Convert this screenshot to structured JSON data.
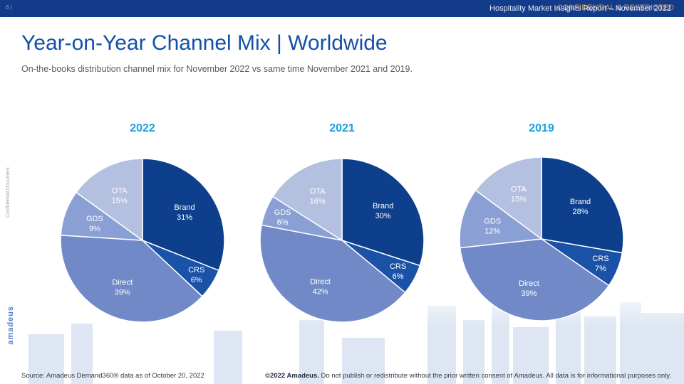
{
  "header": {
    "page_number": "6 |",
    "report_title": "Hospitality Market Insights Report – November 2022",
    "confidential": "CONFIDENTIAL & RESTRICTED"
  },
  "side": {
    "confidential_label": "Confidential Document",
    "logo_text": "amadeus"
  },
  "slide": {
    "title": "Year-on-Year Channel Mix | Worldwide",
    "subtitle": "On-the-books distribution channel mix for November 2022 vs same time November 2021 and 2019."
  },
  "colors": {
    "Brand": "#0d3f8c",
    "CRS": "#1a52a8",
    "Direct": "#7189c7",
    "GDS": "#8a9fd4",
    "OTA": "#b4c0e0",
    "year_title": "#1aa0dd",
    "header_bar": "#123c8a"
  },
  "chart_data": [
    {
      "type": "pie",
      "title": "2022",
      "categories": [
        "Brand",
        "CRS",
        "Direct",
        "GDS",
        "OTA"
      ],
      "values": [
        31,
        6,
        39,
        9,
        15
      ],
      "labels": [
        "31%",
        "6%",
        "39%",
        "9%",
        "15%"
      ]
    },
    {
      "type": "pie",
      "title": "2021",
      "categories": [
        "Brand",
        "CRS",
        "Direct",
        "GDS",
        "OTA"
      ],
      "values": [
        30,
        6,
        42,
        6,
        16
      ],
      "labels": [
        "30%",
        "6%",
        "42%",
        "6%",
        "16%"
      ]
    },
    {
      "type": "pie",
      "title": "2019",
      "categories": [
        "Brand",
        "CRS",
        "Direct",
        "GDS",
        "OTA"
      ],
      "values": [
        28,
        7,
        39,
        12,
        15
      ],
      "labels": [
        "28%",
        "7%",
        "39%",
        "12%",
        "15%"
      ]
    }
  ],
  "footer": {
    "source": "Source: Amadeus Demand360® data as of October 20, 2022",
    "copyright_bold": "©2022 Amadeus.",
    "copyright_rest": " Do not publish or redistribute without the prior written consent of Amadeus. All data is for informational purposes only."
  }
}
